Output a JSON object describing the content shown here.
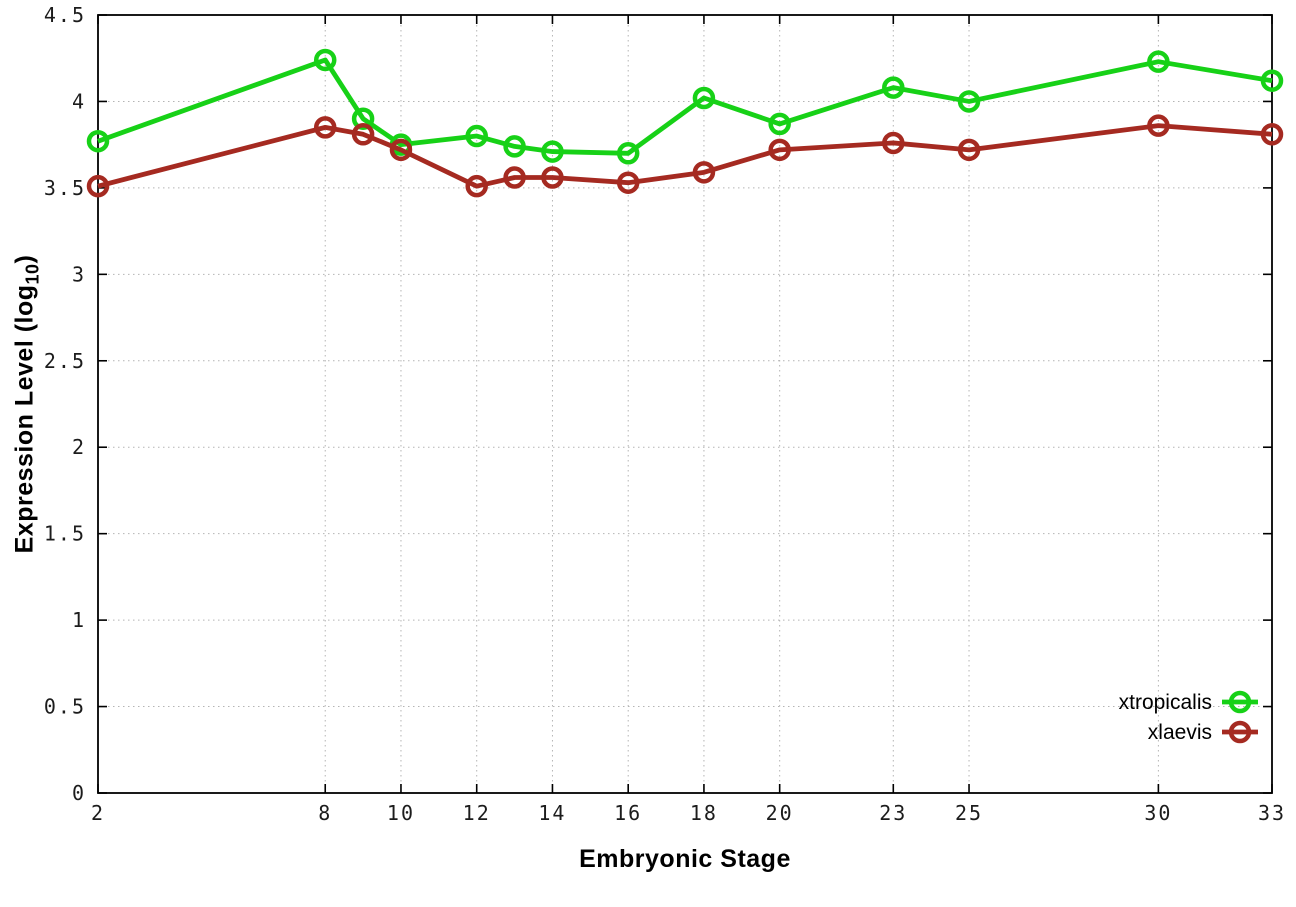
{
  "figure": {
    "background": "#ffffff",
    "frame_color": "#000000",
    "grid_color": "#b4b4b4",
    "tick_label_color": "#1c1c1c"
  },
  "chart_data": {
    "type": "line",
    "title": "",
    "xlabel": "Embryonic Stage",
    "ylabel": "Expression Level (log10)",
    "ylabel_parts": {
      "pre": "Expression Level (log",
      "sub": "10",
      "post": ")"
    },
    "xlim": [
      2,
      33
    ],
    "ylim": [
      0,
      4.5
    ],
    "x_ticks": [
      2,
      8,
      10,
      12,
      14,
      16,
      18,
      20,
      23,
      25,
      30,
      33
    ],
    "y_ticks": [
      0,
      0.5,
      1,
      1.5,
      2,
      2.5,
      3,
      3.5,
      4,
      4.5
    ],
    "grid": true,
    "legend_position": "bottom-right",
    "marker": "open-circle",
    "x": [
      2,
      8,
      9,
      10,
      12,
      13,
      14,
      16,
      18,
      20,
      23,
      25,
      30,
      33
    ],
    "series": [
      {
        "name": "xtropicalis",
        "color": "#17d117",
        "values": [
          3.77,
          4.24,
          3.9,
          3.75,
          3.8,
          3.74,
          3.71,
          3.7,
          4.02,
          3.87,
          4.08,
          4.0,
          4.23,
          4.12
        ]
      },
      {
        "name": "xlaevis",
        "color": "#a52a21",
        "values": [
          3.51,
          3.85,
          3.81,
          3.72,
          3.51,
          3.56,
          3.56,
          3.53,
          3.59,
          3.72,
          3.76,
          3.72,
          3.86,
          3.81
        ]
      }
    ]
  }
}
